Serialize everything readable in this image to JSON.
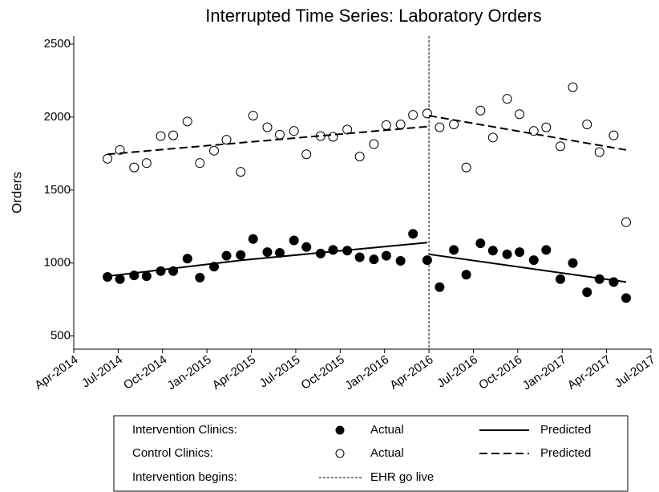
{
  "chart_data": {
    "type": "scatter",
    "title": "Interrupted Time Series: Laboratory Orders",
    "y_label": "Orders",
    "x": [
      2014.44,
      2014.51,
      2014.59,
      2014.66,
      2014.74,
      2014.81,
      2014.89,
      2014.96,
      2015.04,
      2015.11,
      2015.19,
      2015.26,
      2015.34,
      2015.41,
      2015.49,
      2015.56,
      2015.64,
      2015.71,
      2015.79,
      2015.86,
      2015.94,
      2016.01,
      2016.09,
      2016.16,
      2016.24,
      2016.31,
      2016.39,
      2016.46,
      2016.54,
      2016.61,
      2016.69,
      2016.76,
      2016.84,
      2016.91,
      2016.99,
      2017.06,
      2017.14,
      2017.21,
      2017.29,
      2017.36
    ],
    "series": [
      {
        "name": "Actual",
        "color": "#000000",
        "marker": "filled",
        "values": [
          905,
          890,
          915,
          910,
          945,
          945,
          1030,
          900,
          975,
          1050,
          1055,
          1165,
          1075,
          1070,
          1155,
          1110,
          1065,
          1090,
          1085,
          1040,
          1025,
          1050,
          1015,
          1200,
          1020,
          835,
          1090,
          920,
          1135,
          1085,
          1060,
          1075,
          1020,
          1090,
          890,
          1000,
          800,
          890,
          870,
          760
        ]
      },
      {
        "name": "Predicted",
        "color": "#000000",
        "line": "solid",
        "x": [
          2014.44,
          2015.2,
          2016.24,
          2016.25,
          2016.25,
          2017.36
        ],
        "values": [
          910,
          1020,
          1140,
          null,
          1060,
          870
        ]
      },
      {
        "name": "Actual",
        "color": "#000000",
        "marker": "open",
        "values": [
          1715,
          1775,
          1655,
          1685,
          1870,
          1875,
          1970,
          1685,
          1770,
          1845,
          1625,
          2010,
          1930,
          1880,
          1905,
          1745,
          1870,
          1865,
          1915,
          1730,
          1815,
          1945,
          1950,
          2015,
          2025,
          1930,
          1950,
          1655,
          2045,
          1860,
          2125,
          2020,
          1905,
          1930,
          1800,
          2205,
          1950,
          1760,
          1875,
          1280
        ]
      },
      {
        "name": "Predicted",
        "color": "#000000",
        "line": "dashed",
        "x": [
          2014.44,
          2016.24,
          2016.25,
          2016.25,
          2017.36
        ],
        "values": [
          1745,
          1935,
          null,
          2010,
          1775
        ]
      }
    ],
    "legend_groups": [
      "Intervention Clinics:",
      "Control Clinics:"
    ],
    "intervention": {
      "x": 2016.25,
      "label": "Intervention begins:",
      "name": "EHR go live"
    },
    "xlim": [
      2014.25,
      2017.5
    ],
    "xticks": [
      {
        "value": 2014.25,
        "label": "Apr-2014"
      },
      {
        "value": 2014.5,
        "label": "Jul-2014"
      },
      {
        "value": 2014.75,
        "label": "Oct-2014"
      },
      {
        "value": 2015,
        "label": "Jan-2015"
      },
      {
        "value": 2015.25,
        "label": "Apr-2015"
      },
      {
        "value": 2015.5,
        "label": "Jul-2015"
      },
      {
        "value": 2015.75,
        "label": "Oct-2015"
      },
      {
        "value": 2016,
        "label": "Jan-2016"
      },
      {
        "value": 2016.25,
        "label": "Apr-2016"
      },
      {
        "value": 2016.5,
        "label": "Jul-2016"
      },
      {
        "value": 2016.75,
        "label": "Oct-2016"
      },
      {
        "value": 2017,
        "label": "Jan-2017"
      },
      {
        "value": 2017.25,
        "label": "Apr-2017"
      },
      {
        "value": 2017.5,
        "label": "Jul-2017"
      }
    ],
    "ylim": [
      410,
      2555
    ],
    "yticks": [
      500,
      1000,
      1500,
      2000,
      2500
    ],
    "grid": false
  }
}
